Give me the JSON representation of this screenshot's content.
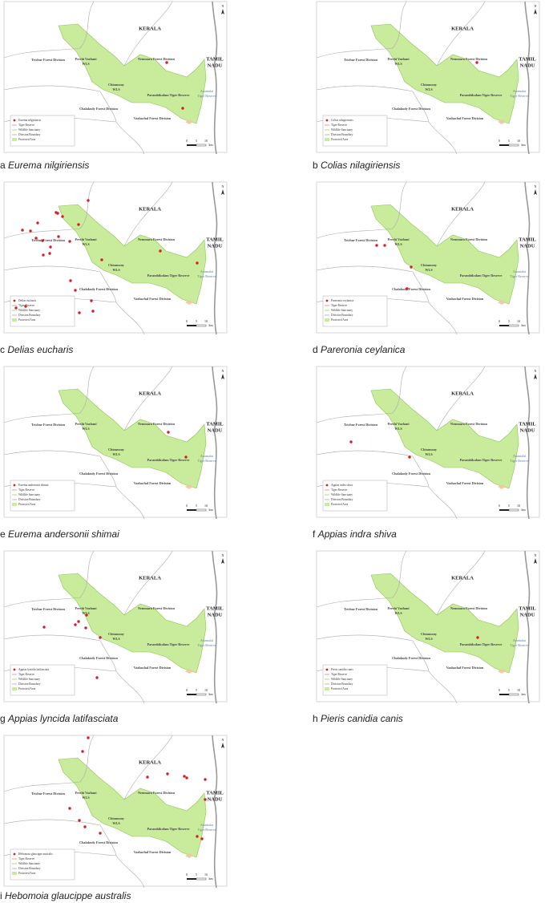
{
  "map_labels": {
    "state_kerala": "KERALA",
    "state_tamil_nadu": [
      "TAMIL",
      "NADU"
    ],
    "trichur": "Trichur Forest Division",
    "peechi": [
      "Peechi Vazhani",
      "WLS"
    ],
    "nemmara": "Nemmara Forest Division",
    "chimmony": [
      "Chimmony",
      "WLS"
    ],
    "parambikulam": "Parambikulam Tiger Reserve",
    "anamalai": [
      "Anamalai",
      "Tiger Reserve"
    ],
    "chalakudy": "Chalakudy Forest Division",
    "vazhachal": "Vazhachal Forest Division",
    "north": "N"
  },
  "legend": [
    "Tiger Reserve",
    "Wildlife Sanctuary",
    "Division Boundary",
    "Protected Area"
  ],
  "scale": {
    "ticks": [
      "0",
      "5",
      "10"
    ],
    "unit": "km"
  },
  "panels": [
    {
      "letter": "a",
      "species": "Eurema nilgiriensis"
    },
    {
      "letter": "b",
      "species": "Colias nilagiriensis"
    },
    {
      "letter": "c",
      "species": "Delias eucharis"
    },
    {
      "letter": "d",
      "species": "Pareronia ceylanica"
    },
    {
      "letter": "e",
      "species": "Eurema andersonii shimai"
    },
    {
      "letter": "f",
      "species": "Appias indra shiva"
    },
    {
      "letter": "g",
      "species": "Appias lyncida latifasciata"
    },
    {
      "letter": "h",
      "species": "Pieris canidia canis"
    },
    {
      "letter": "i",
      "species": "Hebomoia glaucippe australis"
    }
  ]
}
